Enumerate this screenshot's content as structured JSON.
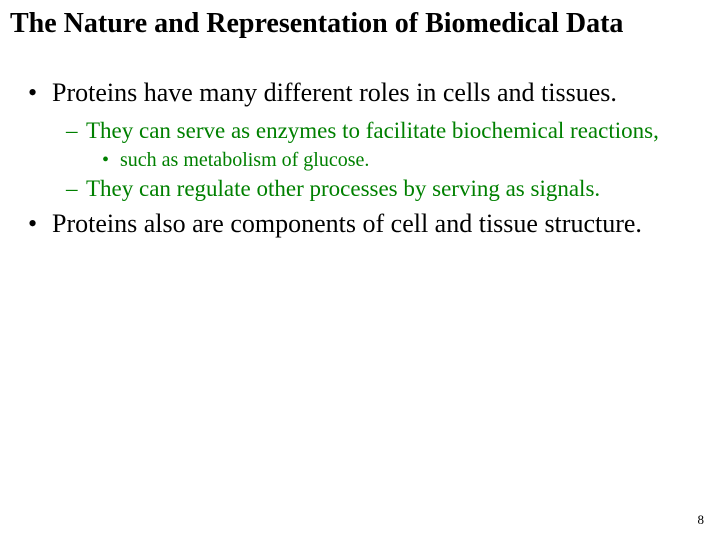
{
  "title": "The Nature and Representation of Biomedical Data",
  "colors": {
    "text": "#000000",
    "accent": "#008000",
    "background": "#ffffff"
  },
  "fonts": {
    "family": "Times New Roman",
    "title_size_pt": 28,
    "l1_size_pt": 26,
    "l2_size_pt": 23,
    "l3_size_pt": 20,
    "pagenum_size_pt": 13
  },
  "bullets": {
    "l1": "•",
    "l2": "–",
    "l3": "•"
  },
  "content": {
    "items": [
      {
        "level": 1,
        "color": "text",
        "text": "Proteins have many different roles in cells and tissues.",
        "children": [
          {
            "level": 2,
            "color": "accent",
            "text": "They can serve as enzymes to facilitate biochemical reactions,",
            "children": [
              {
                "level": 3,
                "color": "accent",
                "text": "such as metabolism of glucose."
              }
            ]
          },
          {
            "level": 2,
            "color": "accent",
            "text": "They can regulate other processes by serving as signals."
          }
        ]
      },
      {
        "level": 1,
        "color": "text",
        "text": "Proteins also are components of cell and tissue structure."
      }
    ]
  },
  "page_number": "8"
}
